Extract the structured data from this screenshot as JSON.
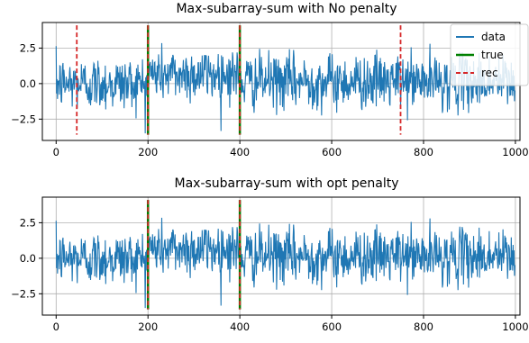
{
  "colors": {
    "data": "#1f77b4",
    "true": "#008000",
    "rec": "#d62728",
    "grid": "#b0b0b0"
  },
  "chart_data": [
    {
      "type": "line",
      "title": "Max-subarray-sum with No penalty",
      "xlim": [
        -30,
        1010
      ],
      "ylim": [
        -4.0,
        4.3
      ],
      "xticks": [
        0,
        200,
        400,
        600,
        800,
        1000
      ],
      "xtick_labels": [
        "0",
        "200",
        "400",
        "600",
        "800",
        "1000"
      ],
      "yticks": [
        2.5,
        0.0,
        -2.5
      ],
      "ytick_labels": [
        "2.5",
        "0.0",
        "−2.5"
      ],
      "grid": true,
      "legend": "top-right",
      "series": [
        {
          "name": "data",
          "n_points": 1000,
          "y_range": [
            -3.5,
            3.9
          ]
        },
        {
          "name": "true",
          "x": [
            200,
            400
          ],
          "y_range": [
            -3.6,
            4.1
          ]
        },
        {
          "name": "rec",
          "x": [
            45,
            200,
            400,
            750
          ],
          "y_range": [
            -3.6,
            4.1
          ]
        }
      ]
    },
    {
      "type": "line",
      "title": "Max-subarray-sum with opt penalty",
      "xlim": [
        -30,
        1010
      ],
      "ylim": [
        -4.0,
        4.3
      ],
      "xticks": [
        0,
        200,
        400,
        600,
        800,
        1000
      ],
      "xtick_labels": [
        "0",
        "200",
        "400",
        "600",
        "800",
        "1000"
      ],
      "yticks": [
        2.5,
        0.0,
        -2.5
      ],
      "ytick_labels": [
        "2.5",
        "0.0",
        "−2.5"
      ],
      "grid": true,
      "legend": "none",
      "series": [
        {
          "name": "data",
          "n_points": 1000,
          "y_range": [
            -3.5,
            3.9
          ]
        },
        {
          "name": "true",
          "x": [
            200,
            400
          ],
          "y_range": [
            -3.6,
            4.1
          ]
        },
        {
          "name": "rec",
          "x": [
            200,
            400
          ],
          "y_range": [
            -3.6,
            4.1
          ]
        }
      ]
    }
  ]
}
